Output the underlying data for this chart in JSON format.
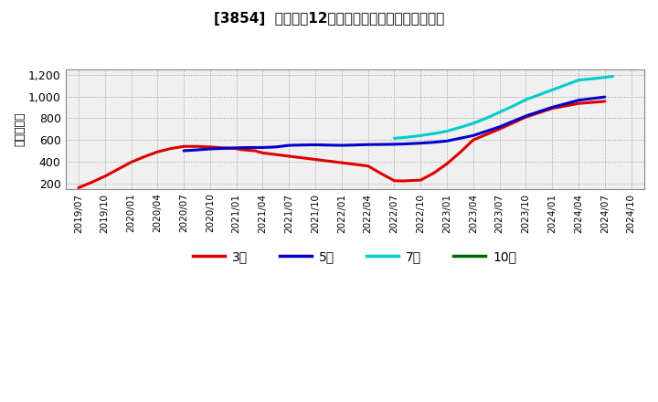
{
  "title": "[3854]  経常利益12か月移動合計の標準偏差の推移",
  "ylabel": "（百万円）",
  "ylim": [
    150,
    1250
  ],
  "yticks": [
    200,
    400,
    600,
    800,
    1000,
    1200
  ],
  "ytick_labels": [
    "200",
    "400",
    "600",
    "800",
    "1,000",
    "1,200"
  ],
  "background_color": "#ffffff",
  "plot_bg_color": "#f0f0f0",
  "grid_color": "#999999",
  "x_labels": [
    "2019/07",
    "2019/10",
    "2020/01",
    "2020/04",
    "2020/07",
    "2020/10",
    "2021/01",
    "2021/04",
    "2021/07",
    "2021/10",
    "2022/01",
    "2022/04",
    "2022/07",
    "2022/10",
    "2023/01",
    "2023/04",
    "2023/07",
    "2023/10",
    "2024/01",
    "2024/04",
    "2024/07",
    "2024/10"
  ],
  "series": {
    "3year": {
      "color": "#dd0000",
      "label": "3年",
      "data_x": [
        0,
        0.5,
        1,
        1.5,
        2,
        2.5,
        3,
        3.5,
        4,
        4.5,
        5,
        5.5,
        6,
        6.2,
        6.7,
        7,
        7.5,
        8,
        8.5,
        9,
        9.5,
        10,
        10.5,
        11,
        11.5,
        12,
        12.3,
        13,
        13.5,
        14,
        14.5,
        15,
        15.5,
        16,
        16.5,
        17,
        17.5,
        18,
        18.5,
        19,
        19.5,
        20
      ],
      "data_y": [
        160,
        210,
        265,
        330,
        395,
        445,
        490,
        520,
        540,
        540,
        535,
        527,
        520,
        510,
        500,
        480,
        465,
        450,
        435,
        420,
        405,
        390,
        375,
        360,
        290,
        225,
        222,
        230,
        295,
        380,
        485,
        600,
        650,
        700,
        755,
        810,
        850,
        890,
        912,
        935,
        945,
        955
      ]
    },
    "5year": {
      "color": "#0000cc",
      "label": "5年",
      "data_x": [
        4,
        4.5,
        5,
        5.5,
        6,
        6.5,
        7,
        7.5,
        8,
        8.5,
        9,
        9.5,
        10,
        10.5,
        11,
        11.5,
        12,
        12.3,
        13,
        13.5,
        14,
        14.5,
        15,
        15.5,
        16,
        16.5,
        17,
        17.5,
        18,
        18.5,
        19,
        19.5,
        20
      ],
      "data_y": [
        500,
        508,
        517,
        522,
        527,
        530,
        530,
        535,
        550,
        553,
        555,
        552,
        550,
        553,
        557,
        558,
        560,
        562,
        570,
        578,
        590,
        615,
        640,
        680,
        720,
        770,
        820,
        860,
        900,
        932,
        965,
        980,
        995
      ]
    },
    "7year": {
      "color": "#00cccc",
      "label": "7年",
      "data_x": [
        12,
        12.5,
        13,
        13.5,
        14,
        14.5,
        15,
        15.5,
        16,
        16.5,
        17,
        17.5,
        18,
        18.5,
        19,
        19.5,
        20,
        20.3
      ],
      "data_y": [
        615,
        625,
        640,
        658,
        680,
        715,
        752,
        800,
        855,
        910,
        970,
        1015,
        1060,
        1105,
        1150,
        1162,
        1175,
        1185
      ]
    },
    "10year": {
      "color": "#006600",
      "label": "10年",
      "data_x": [],
      "data_y": []
    }
  },
  "legend_entries": [
    "3年",
    "5年",
    "7年",
    "10年"
  ],
  "legend_colors": [
    "#dd0000",
    "#0000cc",
    "#00cccc",
    "#006600"
  ]
}
